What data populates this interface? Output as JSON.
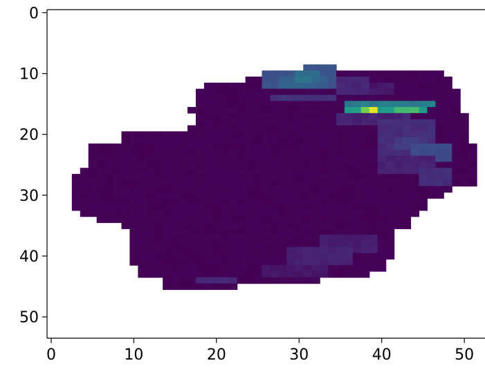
{
  "chart_data": {
    "type": "heatmap",
    "title": "",
    "xlabel": "",
    "ylabel": "",
    "xlim": [
      -0.5,
      52.5
    ],
    "ylim": [
      53.5,
      -0.5
    ],
    "xticks": [
      0,
      10,
      20,
      30,
      40,
      50
    ],
    "yticks": [
      0,
      10,
      20,
      30,
      40,
      50
    ],
    "xtick_labels": [
      "0",
      "10",
      "20",
      "30",
      "40",
      "50"
    ],
    "ytick_labels": [
      "0",
      "10",
      "20",
      "30",
      "40",
      "50"
    ],
    "colormap": "viridis",
    "value_range": [
      0,
      1
    ],
    "masked_value": "blank",
    "background_value": 0.0,
    "rows": [
      [
        9,
        31,
        35,
        0.04
      ],
      [
        10,
        26,
        48,
        0.0
      ],
      [
        11,
        24,
        49,
        0.0
      ],
      [
        12,
        19,
        49,
        0.0
      ],
      [
        13,
        18,
        50,
        0.0
      ],
      [
        14,
        18,
        50,
        0.0
      ],
      [
        15,
        18,
        50,
        0.0
      ],
      [
        16,
        17,
        50,
        0.0
      ],
      [
        17,
        18,
        51,
        0.0
      ],
      [
        18,
        18,
        51,
        0.0
      ],
      [
        19,
        17,
        51,
        0.0
      ],
      [
        20,
        9,
        51,
        0.0
      ],
      [
        21,
        9,
        51,
        0.0
      ],
      [
        22,
        5,
        52,
        0.0
      ],
      [
        23,
        5,
        52,
        0.0
      ],
      [
        24,
        5,
        52,
        0.0
      ],
      [
        25,
        5,
        52,
        0.0
      ],
      [
        26,
        4,
        52,
        0.0
      ],
      [
        27,
        3,
        52,
        0.0
      ],
      [
        28,
        3,
        52,
        0.0
      ],
      [
        29,
        3,
        49,
        0.0
      ],
      [
        30,
        3,
        48,
        0.0
      ],
      [
        31,
        3,
        46,
        0.0
      ],
      [
        32,
        3,
        46,
        0.0
      ],
      [
        33,
        4,
        45,
        0.0
      ],
      [
        34,
        6,
        44,
        0.0
      ],
      [
        35,
        9,
        44,
        0.0
      ],
      [
        36,
        10,
        42,
        0.0
      ],
      [
        37,
        10,
        42,
        0.0
      ],
      [
        38,
        10,
        42,
        0.0
      ],
      [
        39,
        10,
        42,
        0.0
      ],
      [
        40,
        10,
        42,
        0.0
      ],
      [
        41,
        10,
        41,
        0.0
      ],
      [
        42,
        11,
        41,
        0.0
      ],
      [
        43,
        11,
        39,
        0.0
      ],
      [
        44,
        14,
        33,
        0.0
      ],
      [
        45,
        14,
        23,
        0.0
      ]
    ],
    "patches": [
      [
        26,
        9,
        35,
        13,
        0.32
      ],
      [
        28,
        11,
        34,
        13,
        0.38
      ],
      [
        30,
        10,
        33,
        12,
        0.42
      ],
      [
        27,
        14,
        35,
        15,
        0.18
      ],
      [
        35,
        11,
        39,
        14,
        0.14
      ],
      [
        39,
        12,
        42,
        14,
        0.08
      ],
      [
        36,
        15,
        47,
        16,
        0.45
      ],
      [
        36,
        16,
        46,
        17,
        0.62
      ],
      [
        38,
        16,
        40,
        17,
        0.78
      ],
      [
        42,
        16,
        45,
        17,
        0.7
      ],
      [
        39,
        16,
        40,
        17,
        0.96
      ],
      [
        35,
        17,
        44,
        19,
        0.12
      ],
      [
        40,
        18,
        47,
        24,
        0.16
      ],
      [
        42,
        21,
        46,
        23,
        0.22
      ],
      [
        44,
        22,
        49,
        25,
        0.28
      ],
      [
        40,
        24,
        47,
        27,
        0.12
      ],
      [
        45,
        26,
        49,
        29,
        0.16
      ],
      [
        33,
        37,
        40,
        40,
        0.1
      ],
      [
        29,
        39,
        37,
        42,
        0.12
      ],
      [
        18,
        44,
        23,
        45,
        0.14
      ],
      [
        26,
        42,
        34,
        44,
        0.08
      ]
    ]
  }
}
